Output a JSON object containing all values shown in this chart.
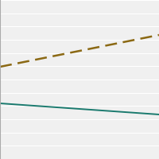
{
  "dashed_line": {
    "x": [
      0,
      1
    ],
    "y": [
      0.58,
      0.78
    ],
    "color": "#8B6914",
    "linewidth": 1.8,
    "dashes": [
      6,
      3
    ]
  },
  "solid_line": {
    "x": [
      0,
      1
    ],
    "y": [
      0.35,
      0.28
    ],
    "color": "#1a7a6e",
    "linewidth": 1.4
  },
  "ylim": [
    0,
    1
  ],
  "xlim": [
    0,
    1
  ],
  "background_color": "#f0f0f0",
  "grid_color": "#ffffff",
  "grid_linewidth": 0.8,
  "n_gridlines": 12,
  "figsize": [
    2.0,
    2.0
  ],
  "dpi": 100
}
